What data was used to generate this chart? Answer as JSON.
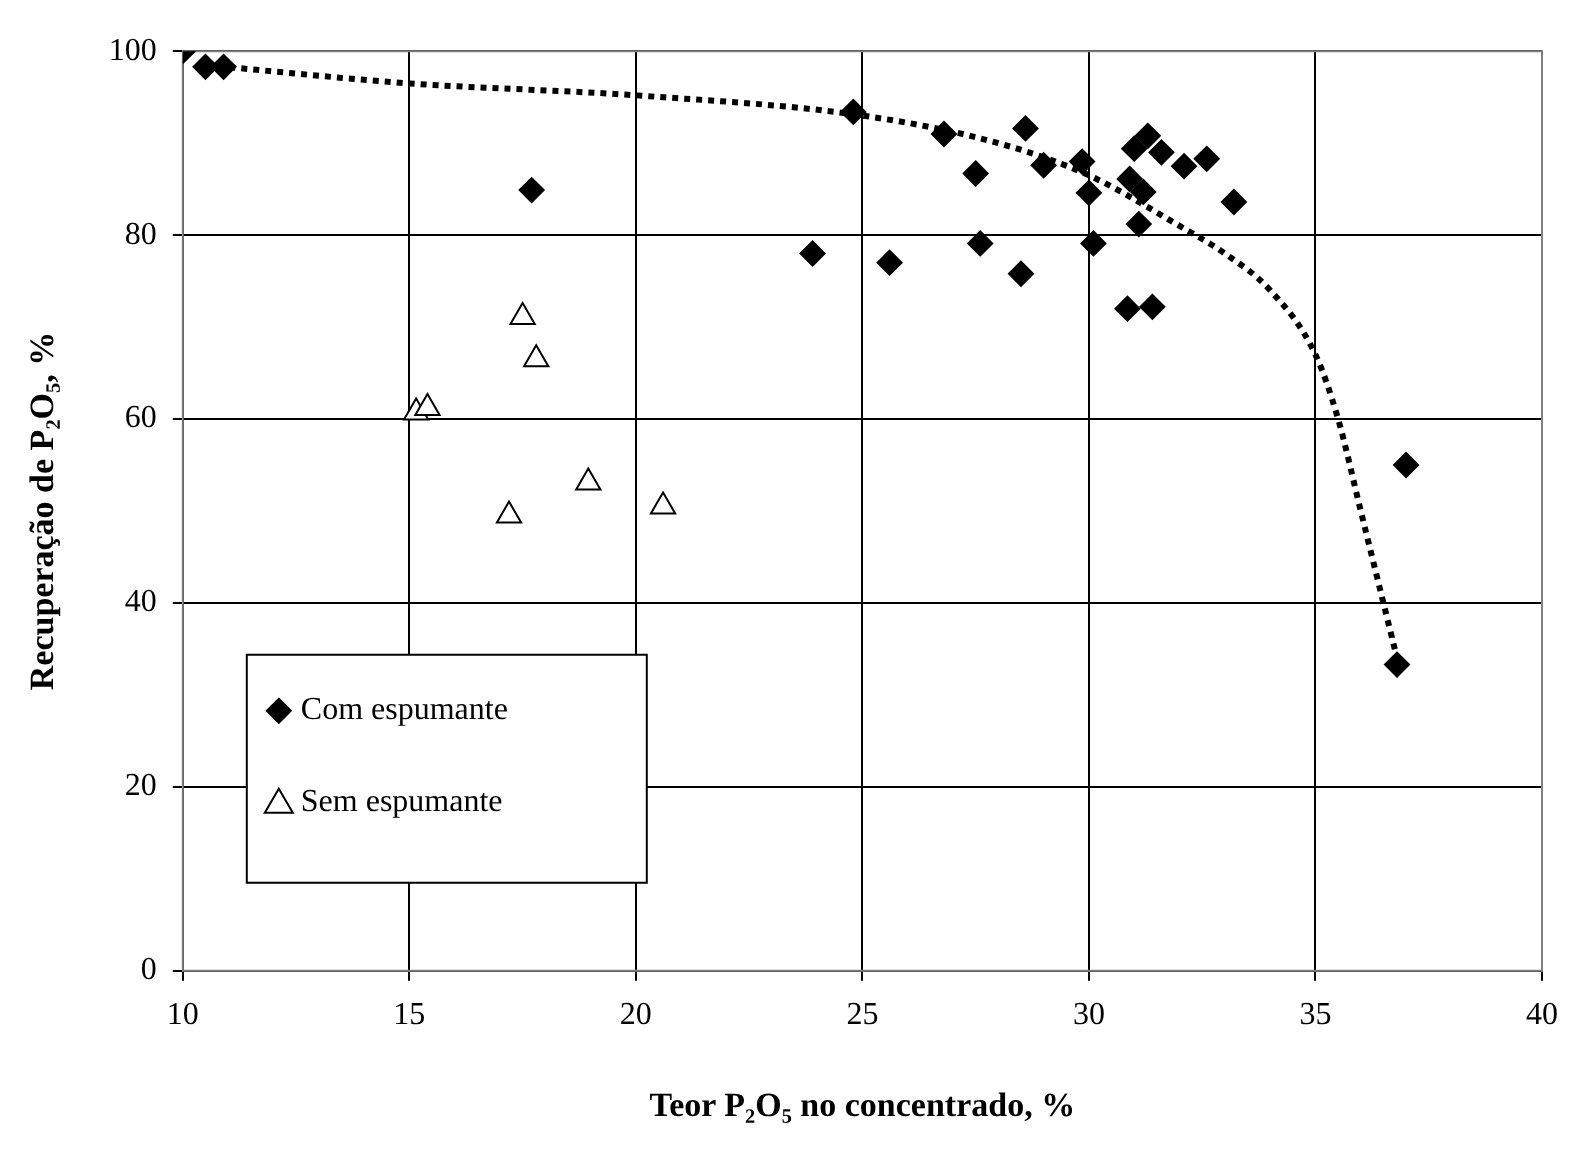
{
  "chart_data": {
    "type": "scatter",
    "xlabel": "Teor P₂O₅ no concentrado, %",
    "ylabel": "Recuperação de P₂O₅, %",
    "xlim": [
      10,
      40
    ],
    "xticks": [
      10,
      15,
      20,
      25,
      30,
      35,
      40
    ],
    "ylim": [
      0,
      100
    ],
    "yticks": [
      0,
      20,
      40,
      60,
      80,
      100
    ],
    "grid": true,
    "legend": "bottom left",
    "series": [
      {
        "name": "Com espumante",
        "color": "#000000",
        "marker": "diamond",
        "x": [
          10,
          10.5,
          10.9,
          17.7,
          24.8,
          23.9,
          25.6,
          26.8,
          27.5,
          28.6,
          29,
          27.6,
          28.5,
          29.85,
          30,
          30.1,
          30.85,
          31,
          31.3,
          30.9,
          31.2,
          31.1,
          31.4,
          31.6,
          32.1,
          32.6,
          33.2,
          36.8,
          37
        ],
        "values": [
          100,
          98.3,
          98.3,
          84.9,
          93.4,
          78,
          77,
          91,
          86.7,
          91.6,
          87.6,
          79.1,
          75.8,
          88,
          84.6,
          79.1,
          72,
          89.4,
          90.8,
          86.1,
          84.7,
          81.2,
          72.2,
          89,
          87.5,
          88.3,
          83.6,
          33.3,
          55
        ]
      },
      {
        "name": "Sem espumante",
        "color": "#000000",
        "marker": "triangle",
        "x": [
          17.5,
          17.8,
          15.15,
          15.4,
          18.95,
          17.2,
          20.6
        ],
        "values": [
          71.1,
          66.5,
          60.7,
          61.2,
          53.1,
          49.5,
          50.5
        ]
      },
      {
        "type": "line",
        "color": "#000000",
        "line_style": "dotted",
        "marker": "none",
        "x": [
          10.5,
          15,
          20,
          25,
          28,
          30,
          32,
          33,
          34,
          35,
          35.5,
          36,
          36.5,
          36.8
        ],
        "values": [
          98.5,
          96.5,
          95.2,
          93,
          90,
          86.5,
          81,
          78,
          74,
          67,
          60,
          50,
          40,
          34
        ]
      }
    ]
  }
}
